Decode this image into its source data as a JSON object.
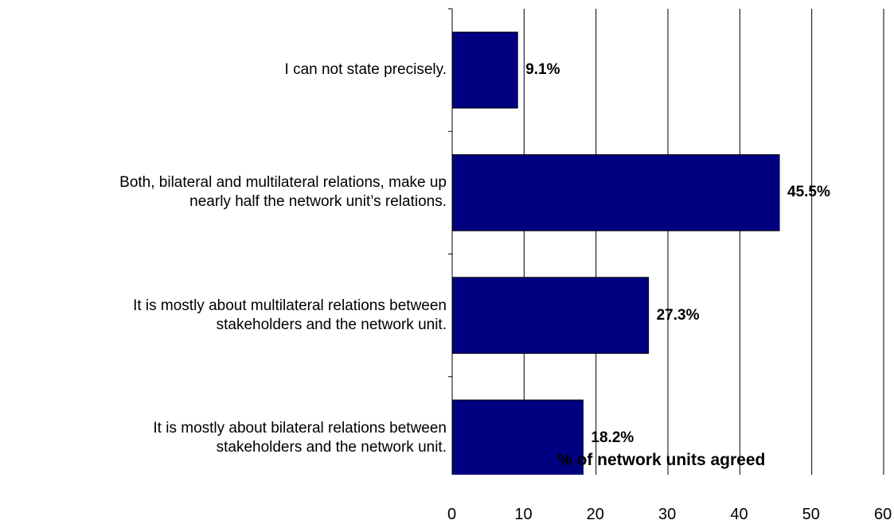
{
  "chart_data": {
    "type": "bar",
    "orientation": "horizontal",
    "categories": [
      "I can not state precisely.",
      "Both, bilateral and multilateral relations, make up\nnearly half the network unit’s relations.",
      "It is mostly about multilateral relations between\nstakeholders and the network unit.",
      "It is mostly about bilateral relations between\nstakeholders and the network unit."
    ],
    "values": [
      9.1,
      45.5,
      27.3,
      18.2
    ],
    "data_labels": [
      "9.1%",
      "45.5%",
      "27.3%",
      "18.2%"
    ],
    "xlabel": "% of network units agreed",
    "ylabel": "",
    "xlim": [
      0,
      60
    ],
    "x_ticks": [
      "0",
      "10",
      "20",
      "30",
      "40",
      "50",
      "60"
    ],
    "grid": "vertical",
    "bar_color": "#000080"
  }
}
